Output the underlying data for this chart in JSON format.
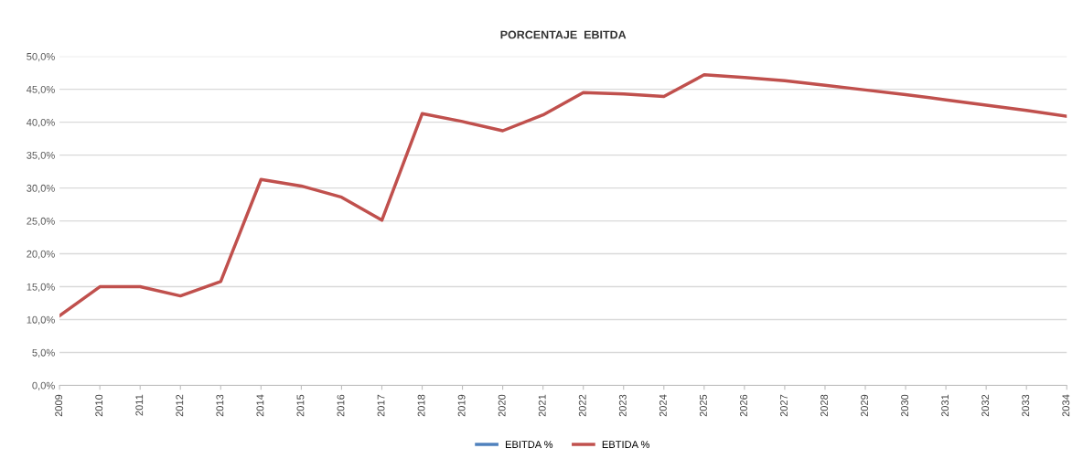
{
  "chart_data": {
    "type": "line",
    "title": "PORCENTAJE  EBITDA",
    "categories": [
      "2009",
      "2010",
      "2011",
      "2012",
      "2013",
      "2014",
      "2015",
      "2016",
      "2017",
      "2018",
      "2019",
      "2020",
      "2021",
      "2022",
      "2023",
      "2024",
      "2025",
      "2026",
      "2027",
      "2028",
      "2029",
      "2030",
      "2031",
      "2032",
      "2033",
      "2034"
    ],
    "series": [
      {
        "name": "EBITDA %",
        "color": "#4f81bd",
        "values": [
          null,
          null,
          null,
          null,
          null,
          null,
          null,
          null,
          null,
          null,
          null,
          null,
          null,
          null,
          null,
          null,
          null,
          null,
          null,
          null,
          null,
          null,
          null,
          null,
          null,
          null
        ]
      },
      {
        "name": "EBTIDA %",
        "color": "#c0504d",
        "values": [
          10.6,
          15.0,
          15.0,
          13.6,
          15.8,
          31.3,
          30.3,
          28.6,
          25.1,
          41.3,
          40.1,
          38.7,
          41.1,
          44.5,
          44.3,
          43.9,
          47.2,
          46.8,
          46.3,
          45.6,
          44.9,
          44.2,
          43.4,
          42.6,
          41.8,
          40.9
        ]
      }
    ],
    "ylim": [
      0,
      50
    ],
    "yticks": [
      {
        "value": 0,
        "label": "0,0%"
      },
      {
        "value": 5,
        "label": "5,0%"
      },
      {
        "value": 10,
        "label": "10,0%"
      },
      {
        "value": 15,
        "label": "15,0%"
      },
      {
        "value": 20,
        "label": "20,0%"
      },
      {
        "value": 25,
        "label": "25,0%"
      },
      {
        "value": 30,
        "label": "30,0%"
      },
      {
        "value": 35,
        "label": "35,0%"
      },
      {
        "value": 40,
        "label": "40,0%"
      },
      {
        "value": 45,
        "label": "45,0%"
      },
      {
        "value": 50,
        "label": "50,0%"
      }
    ],
    "grid": "y",
    "legend": "bottom",
    "line_style": "solid"
  }
}
